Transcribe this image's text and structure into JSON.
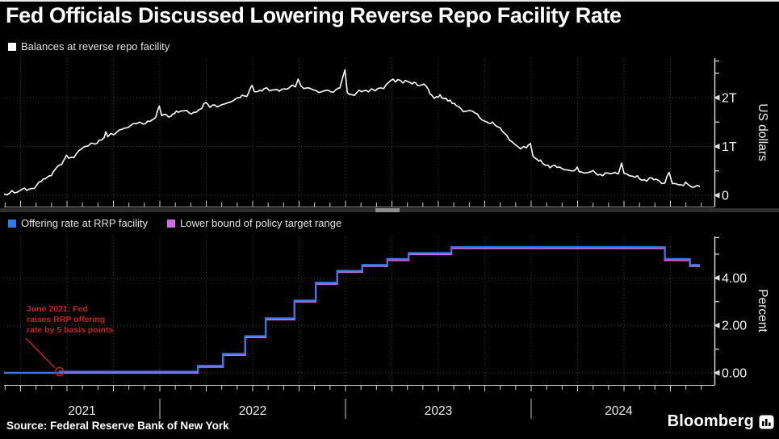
{
  "title": "Fed Officials Discussed Lowering Reverse Repo Facility Rate",
  "source": "Source: Federal Reserve Bank of New York",
  "brand": "Bloomberg",
  "colors": {
    "background": "#000000",
    "balances_line": "#ffffff",
    "offering_rate_line": "#3579e6",
    "lower_bound_line": "#cf6ce6",
    "annotation_red": "#c42222",
    "grid": "#3f3f3f",
    "axis": "#e0e0e0",
    "tick_label": "#f5f5f5",
    "divider": "#2e2e2e",
    "divider_handle": "#8d8d8d"
  },
  "xaxis": {
    "years": [
      "2021",
      "2022",
      "2023",
      "2024"
    ],
    "year_boundaries": [
      2022,
      2023,
      2024
    ]
  },
  "annotation": {
    "text": "June 2021: Fed\nraises RRP offering\nrate by 5 basis points",
    "target_year": 2021.46,
    "target_value": 0.05
  },
  "chart_data": [
    {
      "type": "line",
      "title": "Balances at reverse repo facility",
      "ylabel": "US dollars",
      "unit": "USD trillions",
      "xlim": [
        2021.161,
        2024.943
      ],
      "ylim": [
        0,
        2.85
      ],
      "yticks": [
        {
          "v": 0,
          "label": "0"
        },
        {
          "v": 1,
          "label": "1T"
        },
        {
          "v": 2,
          "label": "2T"
        }
      ],
      "minor_yticks": [
        0.5,
        1.5,
        2.5,
        2.75
      ],
      "grid": true,
      "legend_position": "top-left",
      "series": [
        {
          "name": "Balances at reverse repo facility",
          "color_key": "balances_line",
          "points": [
            [
              2021.161,
              0.03
            ],
            [
              2021.19,
              0.04
            ],
            [
              2021.23,
              0.06
            ],
            [
              2021.26,
              0.13
            ],
            [
              2021.283,
              0.1
            ],
            [
              2021.31,
              0.14
            ],
            [
              2021.339,
              0.22
            ],
            [
              2021.36,
              0.28
            ],
            [
              2021.383,
              0.34
            ],
            [
              2021.405,
              0.4
            ],
            [
              2021.426,
              0.48
            ],
            [
              2021.44,
              0.55
            ],
            [
              2021.457,
              0.62
            ],
            [
              2021.483,
              0.72
            ],
            [
              2021.497,
              0.82
            ],
            [
              2021.51,
              0.76
            ],
            [
              2021.526,
              0.78
            ],
            [
              2021.55,
              0.85
            ],
            [
              2021.578,
              0.95
            ],
            [
              2021.6,
              1.0
            ],
            [
              2021.63,
              1.07
            ],
            [
              2021.65,
              1.05
            ],
            [
              2021.674,
              1.13
            ],
            [
              2021.7,
              1.18
            ],
            [
              2021.709,
              1.3
            ],
            [
              2021.72,
              1.2
            ],
            [
              2021.752,
              1.24
            ],
            [
              2021.77,
              1.3
            ],
            [
              2021.796,
              1.35
            ],
            [
              2021.82,
              1.38
            ],
            [
              2021.839,
              1.42
            ],
            [
              2021.86,
              1.47
            ],
            [
              2021.891,
              1.5
            ],
            [
              2021.91,
              1.46
            ],
            [
              2021.935,
              1.52
            ],
            [
              2021.96,
              1.55
            ],
            [
              2021.978,
              1.6
            ],
            [
              2021.997,
              1.83
            ],
            [
              2022.01,
              1.63
            ],
            [
              2022.035,
              1.65
            ],
            [
              2022.06,
              1.62
            ],
            [
              2022.078,
              1.67
            ],
            [
              2022.1,
              1.7
            ],
            [
              2022.13,
              1.73
            ],
            [
              2022.16,
              1.68
            ],
            [
              2022.183,
              1.7
            ],
            [
              2022.21,
              1.75
            ],
            [
              2022.226,
              1.78
            ],
            [
              2022.249,
              1.9
            ],
            [
              2022.27,
              1.8
            ],
            [
              2022.296,
              1.85
            ],
            [
              2022.32,
              1.83
            ],
            [
              2022.348,
              1.87
            ],
            [
              2022.37,
              1.9
            ],
            [
              2022.4,
              1.95
            ],
            [
              2022.42,
              2.0
            ],
            [
              2022.443,
              2.05
            ],
            [
              2022.46,
              2.03
            ],
            [
              2022.478,
              2.1
            ],
            [
              2022.497,
              2.25
            ],
            [
              2022.51,
              2.12
            ],
            [
              2022.539,
              2.15
            ],
            [
              2022.56,
              2.18
            ],
            [
              2022.591,
              2.14
            ],
            [
              2022.62,
              2.16
            ],
            [
              2022.643,
              2.13
            ],
            [
              2022.67,
              2.18
            ],
            [
              2022.696,
              2.2
            ],
            [
              2022.73,
              2.22
            ],
            [
              2022.745,
              2.38
            ],
            [
              2022.76,
              2.24
            ],
            [
              2022.791,
              2.2
            ],
            [
              2022.82,
              2.17
            ],
            [
              2022.843,
              2.14
            ],
            [
              2022.87,
              2.12
            ],
            [
              2022.896,
              2.15
            ],
            [
              2022.92,
              2.12
            ],
            [
              2022.948,
              2.16
            ],
            [
              2022.97,
              2.2
            ],
            [
              2022.997,
              2.57
            ],
            [
              2023.01,
              2.1
            ],
            [
              2023.035,
              2.06
            ],
            [
              2023.06,
              2.1
            ],
            [
              2023.087,
              2.12
            ],
            [
              2023.11,
              2.15
            ],
            [
              2023.139,
              2.18
            ],
            [
              2023.16,
              2.14
            ],
            [
              2023.191,
              2.2
            ],
            [
              2023.22,
              2.27
            ],
            [
              2023.243,
              2.35
            ],
            [
              2023.27,
              2.32
            ],
            [
              2023.291,
              2.36
            ],
            [
              2023.31,
              2.3
            ],
            [
              2023.335,
              2.33
            ],
            [
              2023.36,
              2.28
            ],
            [
              2023.378,
              2.3
            ],
            [
              2023.4,
              2.25
            ],
            [
              2023.422,
              2.28
            ],
            [
              2023.445,
              2.18
            ],
            [
              2023.465,
              2.05
            ],
            [
              2023.49,
              2.02
            ],
            [
              2023.509,
              2.06
            ],
            [
              2023.53,
              1.98
            ],
            [
              2023.552,
              1.93
            ],
            [
              2023.575,
              1.88
            ],
            [
              2023.596,
              1.84
            ],
            [
              2023.62,
              1.78
            ],
            [
              2023.648,
              1.72
            ],
            [
              2023.67,
              1.74
            ],
            [
              2023.7,
              1.68
            ],
            [
              2023.72,
              1.6
            ],
            [
              2023.748,
              1.52
            ],
            [
              2023.77,
              1.48
            ],
            [
              2023.791,
              1.5
            ],
            [
              2023.82,
              1.4
            ],
            [
              2023.843,
              1.32
            ],
            [
              2023.87,
              1.22
            ],
            [
              2023.896,
              1.1
            ],
            [
              2023.92,
              1.02
            ],
            [
              2023.943,
              0.95
            ],
            [
              2023.96,
              1.0
            ],
            [
              2023.974,
              0.97
            ],
            [
              2023.996,
              1.06
            ],
            [
              2024.01,
              0.8
            ],
            [
              2024.022,
              0.76
            ],
            [
              2024.04,
              0.7
            ],
            [
              2024.061,
              0.66
            ],
            [
              2024.09,
              0.62
            ],
            [
              2024.113,
              0.6
            ],
            [
              2024.14,
              0.57
            ],
            [
              2024.165,
              0.55
            ],
            [
              2024.19,
              0.52
            ],
            [
              2024.217,
              0.5
            ],
            [
              2024.24,
              0.53
            ],
            [
              2024.248,
              0.58
            ],
            [
              2024.27,
              0.48
            ],
            [
              2024.296,
              0.46
            ],
            [
              2024.32,
              0.48
            ],
            [
              2024.348,
              0.45
            ],
            [
              2024.37,
              0.43
            ],
            [
              2024.4,
              0.46
            ],
            [
              2024.43,
              0.44
            ],
            [
              2024.452,
              0.47
            ],
            [
              2024.47,
              0.44
            ],
            [
              2024.487,
              0.66
            ],
            [
              2024.5,
              0.45
            ],
            [
              2024.53,
              0.4
            ],
            [
              2024.56,
              0.37
            ],
            [
              2024.583,
              0.34
            ],
            [
              2024.61,
              0.32
            ],
            [
              2024.635,
              0.35
            ],
            [
              2024.66,
              0.32
            ],
            [
              2024.687,
              0.3
            ],
            [
              2024.72,
              0.25
            ],
            [
              2024.743,
              0.47
            ],
            [
              2024.76,
              0.24
            ],
            [
              2024.791,
              0.22
            ],
            [
              2024.82,
              0.2
            ],
            [
              2024.843,
              0.23
            ],
            [
              2024.86,
              0.18
            ],
            [
              2024.878,
              0.17
            ],
            [
              2024.895,
              0.2
            ],
            [
              2024.909,
              0.18
            ]
          ]
        }
      ]
    },
    {
      "type": "step-line",
      "ylabel": "Percent",
      "unit": "percent",
      "xlim": [
        2021.161,
        2024.943
      ],
      "ylim": [
        0,
        5.75
      ],
      "yticks": [
        {
          "v": 0,
          "label": "0.00"
        },
        {
          "v": 2,
          "label": "2.00"
        },
        {
          "v": 4,
          "label": "4.00"
        }
      ],
      "minor_yticks": [
        1,
        3,
        5,
        5.7
      ],
      "grid": true,
      "legend_position": "top-left",
      "series": [
        {
          "name": "Offering rate at RRP facility",
          "color_key": "offering_rate_line",
          "points": [
            [
              2021.161,
              0.0
            ],
            [
              2021.46,
              0.05
            ],
            [
              2022.205,
              0.3
            ],
            [
              2022.34,
              0.8
            ],
            [
              2022.46,
              1.55
            ],
            [
              2022.57,
              2.3
            ],
            [
              2022.725,
              3.05
            ],
            [
              2022.84,
              3.8
            ],
            [
              2022.955,
              4.3
            ],
            [
              2023.09,
              4.55
            ],
            [
              2023.225,
              4.8
            ],
            [
              2023.34,
              5.05
            ],
            [
              2023.57,
              5.3
            ],
            [
              2024.72,
              4.8
            ],
            [
              2024.855,
              4.55
            ],
            [
              2024.909,
              4.55
            ]
          ]
        },
        {
          "name": "Lower bound of policy target range",
          "color_key": "lower_bound_line",
          "points": [
            [
              2021.161,
              0.0
            ],
            [
              2022.205,
              0.25
            ],
            [
              2022.34,
              0.75
            ],
            [
              2022.46,
              1.5
            ],
            [
              2022.57,
              2.25
            ],
            [
              2022.725,
              3.0
            ],
            [
              2022.84,
              3.75
            ],
            [
              2022.955,
              4.25
            ],
            [
              2023.09,
              4.5
            ],
            [
              2023.225,
              4.75
            ],
            [
              2023.34,
              5.0
            ],
            [
              2023.57,
              5.25
            ],
            [
              2024.72,
              4.75
            ],
            [
              2024.855,
              4.5
            ],
            [
              2024.909,
              4.5
            ]
          ]
        }
      ]
    }
  ]
}
